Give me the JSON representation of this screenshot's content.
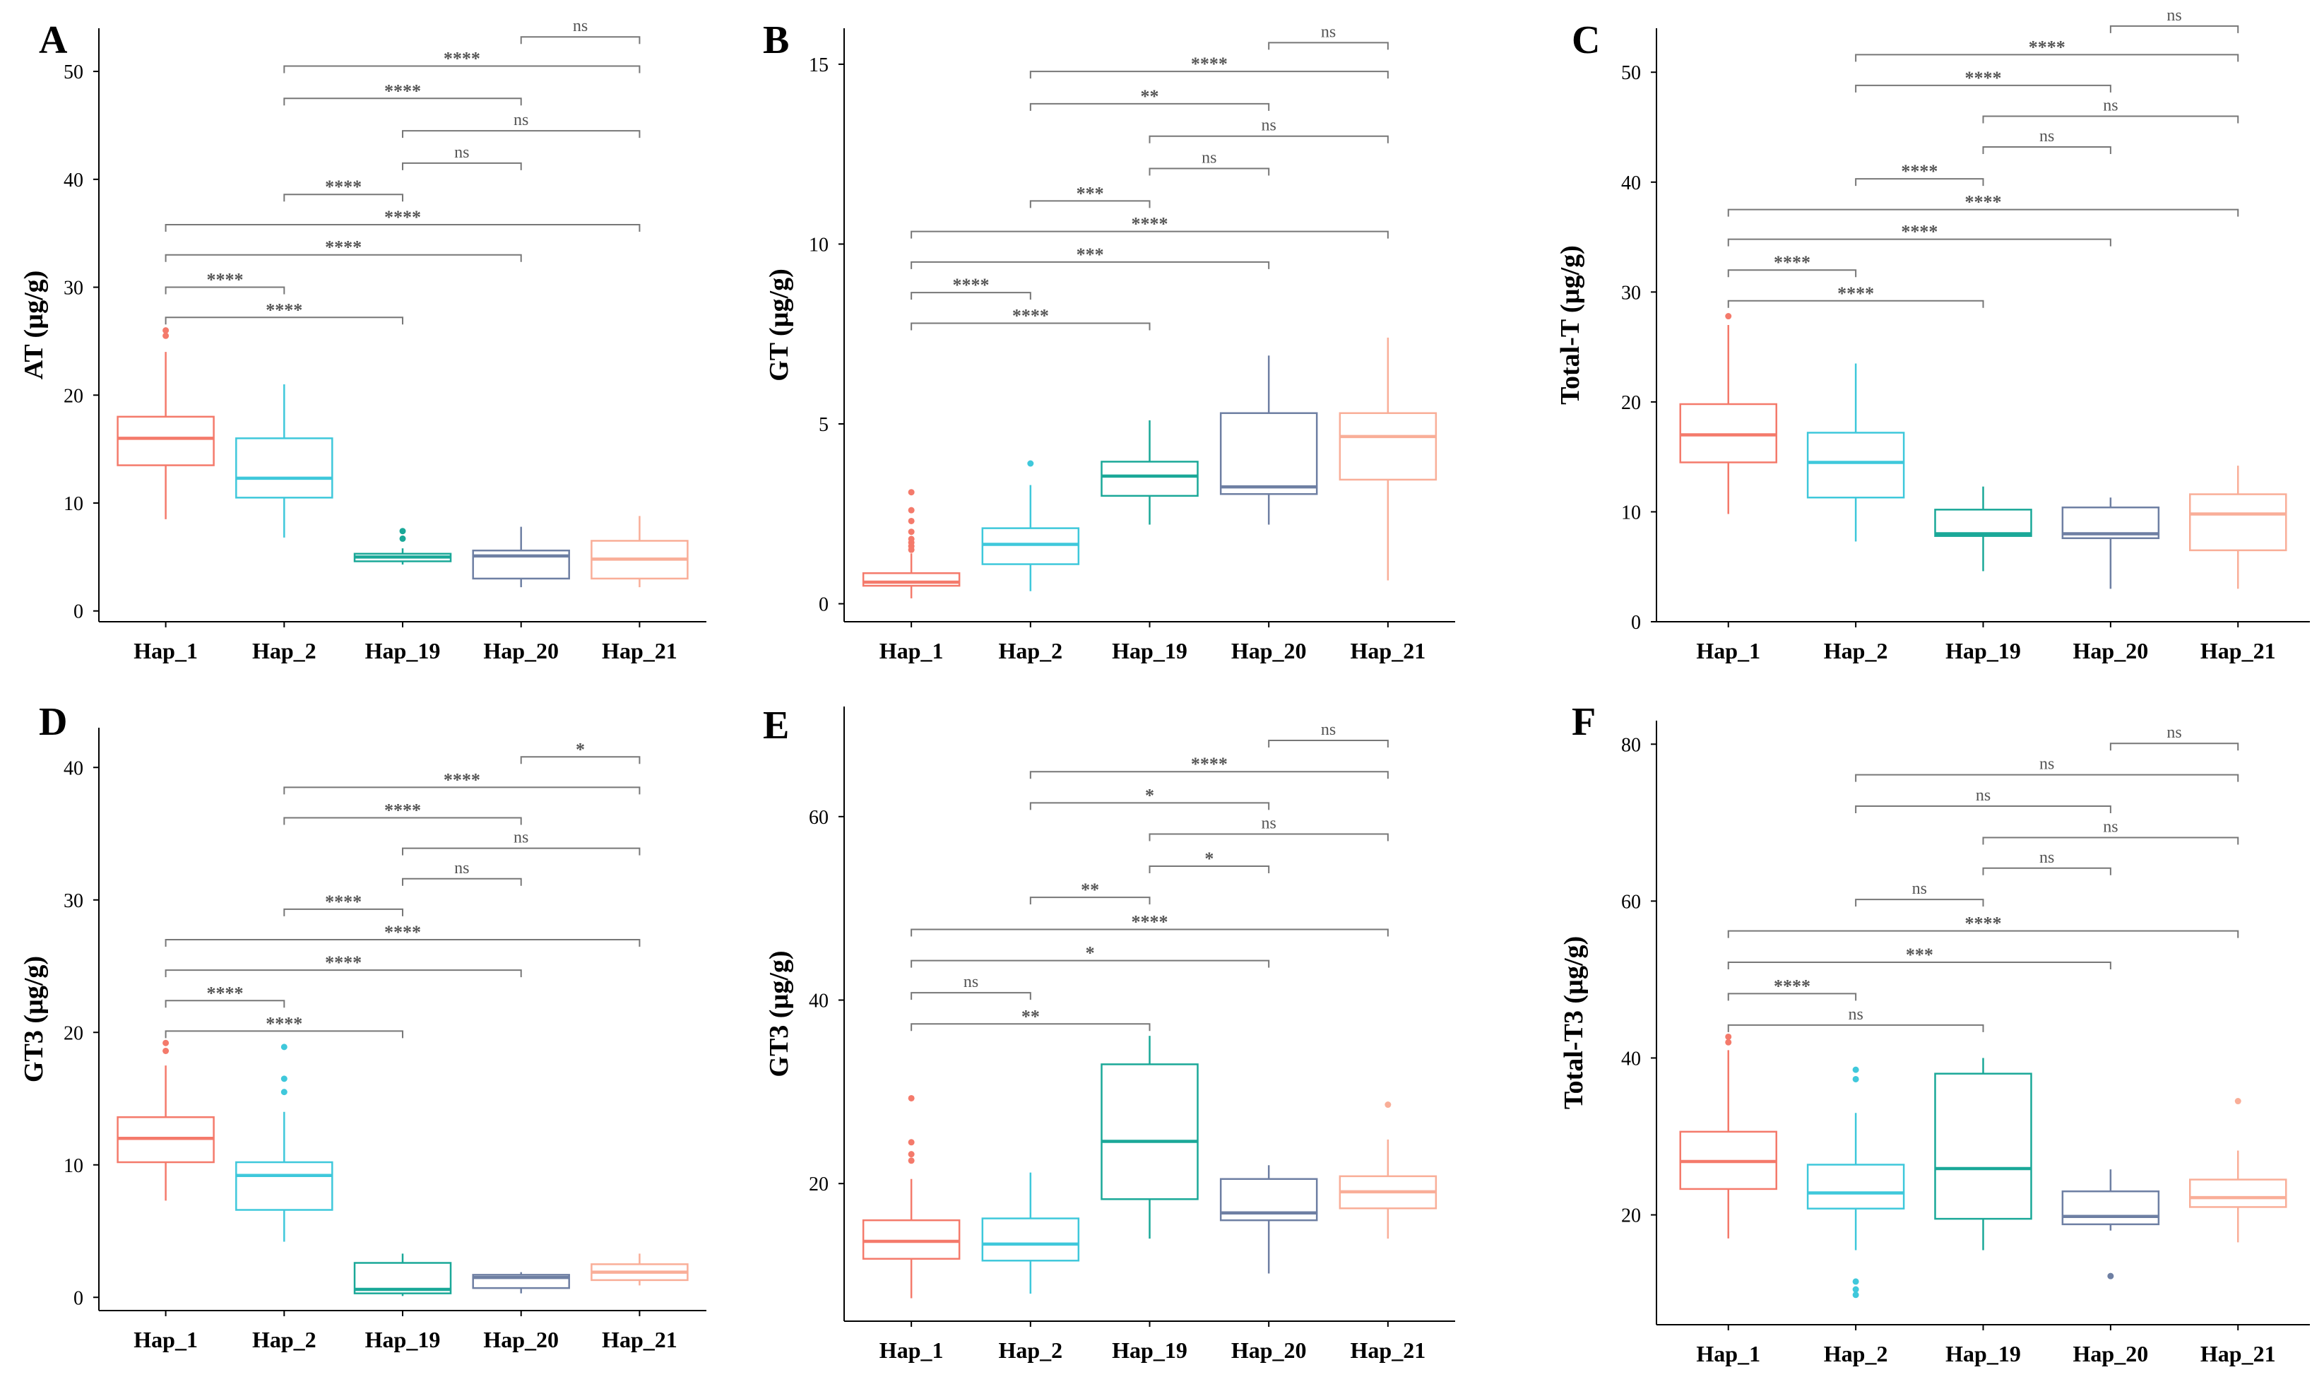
{
  "colors": {
    "Hap_1": "#F47A6B",
    "Hap_2": "#3FC8DB",
    "Hap_19": "#1AA898",
    "Hap_20": "#6E7FA3",
    "Hap_21": "#F9AE98",
    "axis": "#000000",
    "bracket": "#777777"
  },
  "chart_data": [
    {
      "type": "box",
      "panel": "A",
      "ylabel": "AT (µg/g)",
      "xlabel": "",
      "categories": [
        "Hap_1",
        "Hap_2",
        "Hap_19",
        "Hap_20",
        "Hap_21"
      ],
      "ylim": [
        -1,
        54
      ],
      "yticks": [
        0,
        10,
        20,
        30,
        40,
        50
      ],
      "boxes": [
        {
          "name": "Hap_1",
          "min": 8.5,
          "q1": 13.5,
          "median": 16,
          "q3": 18,
          "max": 24,
          "outliers": [
            25.5,
            26
          ]
        },
        {
          "name": "Hap_2",
          "min": 6.8,
          "q1": 10.5,
          "median": 12.3,
          "q3": 16,
          "max": 21,
          "outliers": []
        },
        {
          "name": "Hap_19",
          "min": 4.3,
          "q1": 4.6,
          "median": 5,
          "q3": 5.3,
          "max": 5.8,
          "outliers": [
            6.7,
            7.4
          ]
        },
        {
          "name": "Hap_20",
          "min": 2.2,
          "q1": 3,
          "median": 5.1,
          "q3": 5.6,
          "max": 7.8,
          "outliers": []
        },
        {
          "name": "Hap_21",
          "min": 2.2,
          "q1": 3,
          "median": 4.8,
          "q3": 6.5,
          "max": 8.8,
          "outliers": []
        }
      ],
      "comparisons": [
        {
          "pair": [
            "Hap_1",
            "Hap_2"
          ],
          "label": "****",
          "y": 30
        },
        {
          "pair": [
            "Hap_1",
            "Hap_19"
          ],
          "label": "****",
          "y": 27.2
        },
        {
          "pair": [
            "Hap_1",
            "Hap_20"
          ],
          "label": "****",
          "y": 33
        },
        {
          "pair": [
            "Hap_1",
            "Hap_21"
          ],
          "label": "****",
          "y": 35.8
        },
        {
          "pair": [
            "Hap_2",
            "Hap_19"
          ],
          "label": "****",
          "y": 38.6
        },
        {
          "pair": [
            "Hap_19",
            "Hap_20"
          ],
          "label": "ns",
          "y": 41.5
        },
        {
          "pair": [
            "Hap_19",
            "Hap_21"
          ],
          "label": "ns",
          "y": 44.5
        },
        {
          "pair": [
            "Hap_2",
            "Hap_20"
          ],
          "label": "****",
          "y": 47.5
        },
        {
          "pair": [
            "Hap_2",
            "Hap_21"
          ],
          "label": "****",
          "y": 50.5
        },
        {
          "pair": [
            "Hap_20",
            "Hap_21"
          ],
          "label": "ns",
          "y": 53.2
        }
      ]
    },
    {
      "type": "box",
      "panel": "B",
      "ylabel": "GT (µg/g)",
      "xlabel": "",
      "categories": [
        "Hap_1",
        "Hap_2",
        "Hap_19",
        "Hap_20",
        "Hap_21"
      ],
      "ylim": [
        -0.5,
        16
      ],
      "yticks": [
        0,
        5,
        10,
        15
      ],
      "boxes": [
        {
          "name": "Hap_1",
          "min": 0.15,
          "q1": 0.5,
          "median": 0.6,
          "q3": 0.85,
          "max": 1.4,
          "outliers": [
            1.5,
            1.6,
            1.7,
            1.8,
            2.0,
            2.3,
            2.6,
            3.1
          ]
        },
        {
          "name": "Hap_2",
          "min": 0.35,
          "q1": 1.1,
          "median": 1.65,
          "q3": 2.1,
          "max": 3.3,
          "outliers": [
            3.9
          ]
        },
        {
          "name": "Hap_19",
          "min": 2.2,
          "q1": 3.0,
          "median": 3.55,
          "q3": 3.95,
          "max": 5.1,
          "outliers": []
        },
        {
          "name": "Hap_20",
          "min": 2.2,
          "q1": 3.05,
          "median": 3.25,
          "q3": 5.3,
          "max": 6.9,
          "outliers": []
        },
        {
          "name": "Hap_21",
          "min": 0.65,
          "q1": 3.45,
          "median": 4.65,
          "q3": 5.3,
          "max": 7.4,
          "outliers": []
        }
      ],
      "comparisons": [
        {
          "pair": [
            "Hap_1",
            "Hap_19"
          ],
          "label": "****",
          "y": 7.8
        },
        {
          "pair": [
            "Hap_1",
            "Hap_2"
          ],
          "label": "****",
          "y": 8.65
        },
        {
          "pair": [
            "Hap_1",
            "Hap_20"
          ],
          "label": "***",
          "y": 9.5
        },
        {
          "pair": [
            "Hap_1",
            "Hap_21"
          ],
          "label": "****",
          "y": 10.35
        },
        {
          "pair": [
            "Hap_2",
            "Hap_19"
          ],
          "label": "***",
          "y": 11.2
        },
        {
          "pair": [
            "Hap_19",
            "Hap_20"
          ],
          "label": "ns",
          "y": 12.1
        },
        {
          "pair": [
            "Hap_19",
            "Hap_21"
          ],
          "label": "ns",
          "y": 13.0
        },
        {
          "pair": [
            "Hap_2",
            "Hap_20"
          ],
          "label": "**",
          "y": 13.9
        },
        {
          "pair": [
            "Hap_2",
            "Hap_21"
          ],
          "label": "****",
          "y": 14.8
        },
        {
          "pair": [
            "Hap_20",
            "Hap_21"
          ],
          "label": "ns",
          "y": 15.6
        }
      ]
    },
    {
      "type": "box",
      "panel": "C",
      "ylabel": "Total-T (µg/g)",
      "xlabel": "",
      "categories": [
        "Hap_1",
        "Hap_2",
        "Hap_19",
        "Hap_20",
        "Hap_21"
      ],
      "ylim": [
        0,
        54
      ],
      "yticks": [
        0,
        10,
        20,
        30,
        40,
        50
      ],
      "boxes": [
        {
          "name": "Hap_1",
          "min": 9.8,
          "q1": 14.5,
          "median": 17,
          "q3": 19.8,
          "max": 27,
          "outliers": [
            27.8
          ]
        },
        {
          "name": "Hap_2",
          "min": 7.3,
          "q1": 11.3,
          "median": 14.5,
          "q3": 17.2,
          "max": 23.5,
          "outliers": []
        },
        {
          "name": "Hap_19",
          "min": 4.6,
          "q1": 7.8,
          "median": 8,
          "q3": 10.2,
          "max": 12.3,
          "outliers": []
        },
        {
          "name": "Hap_20",
          "min": 3,
          "q1": 7.6,
          "median": 8,
          "q3": 10.4,
          "max": 11.3,
          "outliers": []
        },
        {
          "name": "Hap_21",
          "min": 3,
          "q1": 6.5,
          "median": 9.8,
          "q3": 11.6,
          "max": 14.2,
          "outliers": []
        }
      ],
      "comparisons": [
        {
          "pair": [
            "Hap_1",
            "Hap_19"
          ],
          "label": "****",
          "y": 29.2
        },
        {
          "pair": [
            "Hap_1",
            "Hap_2"
          ],
          "label": "****",
          "y": 32
        },
        {
          "pair": [
            "Hap_1",
            "Hap_20"
          ],
          "label": "****",
          "y": 34.8
        },
        {
          "pair": [
            "Hap_1",
            "Hap_21"
          ],
          "label": "****",
          "y": 37.5
        },
        {
          "pair": [
            "Hap_2",
            "Hap_19"
          ],
          "label": "****",
          "y": 40.3
        },
        {
          "pair": [
            "Hap_19",
            "Hap_20"
          ],
          "label": "ns",
          "y": 43.2
        },
        {
          "pair": [
            "Hap_19",
            "Hap_21"
          ],
          "label": "ns",
          "y": 46
        },
        {
          "pair": [
            "Hap_2",
            "Hap_20"
          ],
          "label": "****",
          "y": 48.8
        },
        {
          "pair": [
            "Hap_2",
            "Hap_21"
          ],
          "label": "****",
          "y": 51.6
        },
        {
          "pair": [
            "Hap_20",
            "Hap_21"
          ],
          "label": "ns",
          "y": 54.2
        }
      ]
    },
    {
      "type": "box",
      "panel": "D",
      "ylabel": "GT3 (µg/g)",
      "xlabel": "",
      "categories": [
        "Hap_1",
        "Hap_2",
        "Hap_19",
        "Hap_20",
        "Hap_21"
      ],
      "ylim": [
        -1,
        43
      ],
      "yticks": [
        0,
        10,
        20,
        30,
        40
      ],
      "boxes": [
        {
          "name": "Hap_1",
          "min": 7.3,
          "q1": 10.2,
          "median": 12,
          "q3": 13.6,
          "max": 17.5,
          "outliers": [
            18.6,
            19.2
          ]
        },
        {
          "name": "Hap_2",
          "min": 4.2,
          "q1": 6.6,
          "median": 9.2,
          "q3": 10.2,
          "max": 14,
          "outliers": [
            15.5,
            16.5,
            18.9
          ]
        },
        {
          "name": "Hap_19",
          "min": 0.1,
          "q1": 0.3,
          "median": 0.6,
          "q3": 2.6,
          "max": 3.3,
          "outliers": []
        },
        {
          "name": "Hap_20",
          "min": 0.3,
          "q1": 0.7,
          "median": 1.5,
          "q3": 1.7,
          "max": 1.9,
          "outliers": []
        },
        {
          "name": "Hap_21",
          "min": 0.9,
          "q1": 1.3,
          "median": 1.9,
          "q3": 2.5,
          "max": 3.3,
          "outliers": []
        }
      ],
      "comparisons": [
        {
          "pair": [
            "Hap_1",
            "Hap_19"
          ],
          "label": "****",
          "y": 20.1
        },
        {
          "pair": [
            "Hap_1",
            "Hap_2"
          ],
          "label": "****",
          "y": 22.4
        },
        {
          "pair": [
            "Hap_1",
            "Hap_20"
          ],
          "label": "****",
          "y": 24.7
        },
        {
          "pair": [
            "Hap_1",
            "Hap_21"
          ],
          "label": "****",
          "y": 27.0
        },
        {
          "pair": [
            "Hap_2",
            "Hap_19"
          ],
          "label": "****",
          "y": 29.3
        },
        {
          "pair": [
            "Hap_19",
            "Hap_20"
          ],
          "label": "ns",
          "y": 31.6
        },
        {
          "pair": [
            "Hap_19",
            "Hap_21"
          ],
          "label": "ns",
          "y": 33.9
        },
        {
          "pair": [
            "Hap_2",
            "Hap_20"
          ],
          "label": "****",
          "y": 36.2
        },
        {
          "pair": [
            "Hap_2",
            "Hap_21"
          ],
          "label": "****",
          "y": 38.5
        },
        {
          "pair": [
            "Hap_20",
            "Hap_21"
          ],
          "label": "*",
          "y": 40.8
        }
      ]
    },
    {
      "type": "box",
      "panel": "E",
      "ylabel": "GT3 (µg/g)",
      "xlabel": "",
      "categories": [
        "Hap_1",
        "Hap_2",
        "Hap_19",
        "Hap_20",
        "Hap_21"
      ],
      "ylim": [
        5,
        72
      ],
      "yticks": [
        20,
        40,
        60
      ],
      "boxes": [
        {
          "name": "Hap_1",
          "min": 7.5,
          "q1": 11.8,
          "median": 13.7,
          "q3": 16,
          "max": 20.5,
          "outliers": [
            22.5,
            23.2,
            24.5,
            29.3
          ]
        },
        {
          "name": "Hap_2",
          "min": 8,
          "q1": 11.6,
          "median": 13.4,
          "q3": 16.2,
          "max": 21.2,
          "outliers": []
        },
        {
          "name": "Hap_19",
          "min": 14,
          "q1": 18.3,
          "median": 24.6,
          "q3": 33,
          "max": 36.1,
          "outliers": []
        },
        {
          "name": "Hap_20",
          "min": 10.2,
          "q1": 16,
          "median": 16.8,
          "q3": 20.5,
          "max": 22,
          "outliers": []
        },
        {
          "name": "Hap_21",
          "min": 14,
          "q1": 17.3,
          "median": 19.1,
          "q3": 20.8,
          "max": 24.8,
          "outliers": [
            28.6
          ]
        }
      ],
      "comparisons": [
        {
          "pair": [
            "Hap_1",
            "Hap_19"
          ],
          "label": "**",
          "y": 37.4
        },
        {
          "pair": [
            "Hap_1",
            "Hap_2"
          ],
          "label": "ns",
          "y": 40.8
        },
        {
          "pair": [
            "Hap_1",
            "Hap_20"
          ],
          "label": "*",
          "y": 44.3
        },
        {
          "pair": [
            "Hap_1",
            "Hap_21"
          ],
          "label": "****",
          "y": 47.7
        },
        {
          "pair": [
            "Hap_2",
            "Hap_19"
          ],
          "label": "**",
          "y": 51.2
        },
        {
          "pair": [
            "Hap_19",
            "Hap_20"
          ],
          "label": "*",
          "y": 54.6
        },
        {
          "pair": [
            "Hap_19",
            "Hap_21"
          ],
          "label": "ns",
          "y": 58.1
        },
        {
          "pair": [
            "Hap_2",
            "Hap_20"
          ],
          "label": "*",
          "y": 61.5
        },
        {
          "pair": [
            "Hap_2",
            "Hap_21"
          ],
          "label": "****",
          "y": 64.9
        },
        {
          "pair": [
            "Hap_20",
            "Hap_21"
          ],
          "label": "ns",
          "y": 68.3
        }
      ]
    },
    {
      "type": "box",
      "panel": "F",
      "ylabel": "Total-T3 (µg/g)",
      "xlabel": "",
      "categories": [
        "Hap_1",
        "Hap_2",
        "Hap_19",
        "Hap_20",
        "Hap_21"
      ],
      "ylim": [
        6,
        83
      ],
      "yticks": [
        20,
        40,
        60,
        80
      ],
      "boxes": [
        {
          "name": "Hap_1",
          "min": 17,
          "q1": 23.3,
          "median": 26.8,
          "q3": 30.6,
          "max": 41,
          "outliers": [
            42,
            42.7
          ]
        },
        {
          "name": "Hap_2",
          "min": 15.5,
          "q1": 20.8,
          "median": 22.8,
          "q3": 26.4,
          "max": 33,
          "outliers": [
            9.8,
            10.5,
            11.5,
            37.3,
            38.5
          ]
        },
        {
          "name": "Hap_19",
          "min": 15.5,
          "q1": 19.5,
          "median": 25.9,
          "q3": 38,
          "max": 40,
          "outliers": []
        },
        {
          "name": "Hap_20",
          "min": 18,
          "q1": 18.8,
          "median": 19.8,
          "q3": 23,
          "max": 25.8,
          "outliers": [
            12.2
          ]
        },
        {
          "name": "Hap_21",
          "min": 16.5,
          "q1": 21,
          "median": 22.2,
          "q3": 24.5,
          "max": 28.2,
          "outliers": [
            34.5
          ]
        }
      ],
      "comparisons": [
        {
          "pair": [
            "Hap_1",
            "Hap_19"
          ],
          "label": "ns",
          "y": 44.2
        },
        {
          "pair": [
            "Hap_1",
            "Hap_2"
          ],
          "label": "****",
          "y": 48.2
        },
        {
          "pair": [
            "Hap_1",
            "Hap_20"
          ],
          "label": "***",
          "y": 52.2
        },
        {
          "pair": [
            "Hap_1",
            "Hap_21"
          ],
          "label": "****",
          "y": 56.2
        },
        {
          "pair": [
            "Hap_2",
            "Hap_19"
          ],
          "label": "ns",
          "y": 60.2
        },
        {
          "pair": [
            "Hap_19",
            "Hap_20"
          ],
          "label": "ns",
          "y": 64.2
        },
        {
          "pair": [
            "Hap_19",
            "Hap_21"
          ],
          "label": "ns",
          "y": 68.1
        },
        {
          "pair": [
            "Hap_2",
            "Hap_20"
          ],
          "label": "ns",
          "y": 72.1
        },
        {
          "pair": [
            "Hap_2",
            "Hap_21"
          ],
          "label": "ns",
          "y": 76.1
        },
        {
          "pair": [
            "Hap_20",
            "Hap_21"
          ],
          "label": "ns",
          "y": 80.1
        }
      ]
    }
  ]
}
